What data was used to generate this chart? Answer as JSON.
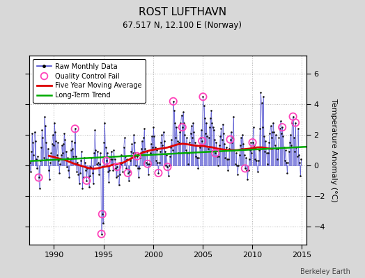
{
  "title": "ROST LUFTHAVN",
  "subtitle": "67.517 N, 12.100 E (Norway)",
  "ylabel": "Temperature Anomaly (°C)",
  "watermark": "Berkeley Earth",
  "xlim": [
    1987.5,
    2015.5
  ],
  "ylim": [
    -5.2,
    7.2
  ],
  "yticks": [
    -4,
    -2,
    0,
    2,
    4,
    6
  ],
  "xticks": [
    1990,
    1995,
    2000,
    2005,
    2010,
    2015
  ],
  "bg_color": "#d8d8d8",
  "plot_bg_color": "#ffffff",
  "line_color": "#4444cc",
  "dot_color": "#111111",
  "qc_color": "#ff44bb",
  "moving_avg_color": "#dd0000",
  "trend_color": "#00aa00",
  "raw_monthly": [
    [
      1987.042,
      1.8
    ],
    [
      1987.125,
      1.4
    ],
    [
      1987.208,
      0.8
    ],
    [
      1987.292,
      -0.3
    ],
    [
      1987.375,
      1.2
    ],
    [
      1987.458,
      0.5
    ],
    [
      1987.542,
      0.2
    ],
    [
      1987.625,
      -0.4
    ],
    [
      1987.708,
      0.9
    ],
    [
      1987.792,
      2.1
    ],
    [
      1987.875,
      1.5
    ],
    [
      1987.958,
      0.7
    ],
    [
      1988.042,
      2.2
    ],
    [
      1988.125,
      1.6
    ],
    [
      1988.208,
      0.4
    ],
    [
      1988.292,
      -0.2
    ],
    [
      1988.375,
      0.6
    ],
    [
      1988.458,
      -0.8
    ],
    [
      1988.542,
      -1.5
    ],
    [
      1988.625,
      0.3
    ],
    [
      1988.708,
      1.2
    ],
    [
      1988.792,
      2.3
    ],
    [
      1988.875,
      1.8
    ],
    [
      1988.958,
      0.5
    ],
    [
      1989.042,
      3.2
    ],
    [
      1989.125,
      2.6
    ],
    [
      1989.208,
      1.5
    ],
    [
      1989.292,
      0.4
    ],
    [
      1989.375,
      1.1
    ],
    [
      1989.458,
      -0.3
    ],
    [
      1989.542,
      -0.9
    ],
    [
      1989.625,
      0.2
    ],
    [
      1989.708,
      0.8
    ],
    [
      1989.792,
      1.4
    ],
    [
      1989.875,
      2.0
    ],
    [
      1989.958,
      1.3
    ],
    [
      1990.042,
      2.8
    ],
    [
      1990.125,
      2.2
    ],
    [
      1990.208,
      1.6
    ],
    [
      1990.292,
      0.7
    ],
    [
      1990.375,
      1.5
    ],
    [
      1990.458,
      0.3
    ],
    [
      1990.542,
      -0.5
    ],
    [
      1990.625,
      0.1
    ],
    [
      1990.708,
      0.7
    ],
    [
      1990.792,
      1.3
    ],
    [
      1990.875,
      0.8
    ],
    [
      1990.958,
      1.4
    ],
    [
      1991.042,
      2.1
    ],
    [
      1991.125,
      1.7
    ],
    [
      1991.208,
      0.9
    ],
    [
      1991.292,
      -0.1
    ],
    [
      1991.375,
      0.5
    ],
    [
      1991.458,
      -0.3
    ],
    [
      1991.542,
      -0.8
    ],
    [
      1991.625,
      0.4
    ],
    [
      1991.708,
      1.0
    ],
    [
      1991.792,
      1.6
    ],
    [
      1991.875,
      1.1
    ],
    [
      1991.958,
      0.6
    ],
    [
      1992.042,
      1.5
    ],
    [
      1992.125,
      2.4
    ],
    [
      1992.208,
      0.6
    ],
    [
      1992.292,
      -0.4
    ],
    [
      1992.375,
      0.2
    ],
    [
      1992.458,
      -0.6
    ],
    [
      1992.542,
      -1.2
    ],
    [
      1992.625,
      -0.5
    ],
    [
      1992.708,
      0.3
    ],
    [
      1992.792,
      0.9
    ],
    [
      1992.875,
      -1.5
    ],
    [
      1992.958,
      -0.8
    ],
    [
      1993.042,
      0.5
    ],
    [
      1993.125,
      0.2
    ],
    [
      1993.208,
      -0.3
    ],
    [
      1993.292,
      -1.0
    ],
    [
      1993.375,
      -0.2
    ],
    [
      1993.458,
      -0.8
    ],
    [
      1993.542,
      -1.4
    ],
    [
      1993.625,
      -0.7
    ],
    [
      1993.708,
      -0.1
    ],
    [
      1993.792,
      0.5
    ],
    [
      1993.875,
      -0.5
    ],
    [
      1993.958,
      -1.2
    ],
    [
      1994.042,
      0.8
    ],
    [
      1994.125,
      2.3
    ],
    [
      1994.208,
      1.0
    ],
    [
      1994.292,
      0.1
    ],
    [
      1994.375,
      0.9
    ],
    [
      1994.458,
      0.2
    ],
    [
      1994.542,
      -0.6
    ],
    [
      1994.625,
      0.1
    ],
    [
      1994.708,
      0.8
    ],
    [
      1994.792,
      -4.5
    ],
    [
      1994.875,
      -3.2
    ],
    [
      1994.958,
      -3.8
    ],
    [
      1995.042,
      1.5
    ],
    [
      1995.125,
      2.8
    ],
    [
      1995.208,
      1.2
    ],
    [
      1995.292,
      0.3
    ],
    [
      1995.375,
      0.8
    ],
    [
      1995.458,
      -0.4
    ],
    [
      1995.542,
      -1.1
    ],
    [
      1995.625,
      -0.3
    ],
    [
      1995.708,
      0.4
    ],
    [
      1995.792,
      0.9
    ],
    [
      1995.875,
      0.4
    ],
    [
      1995.958,
      -0.3
    ],
    [
      1996.042,
      1.0
    ],
    [
      1996.125,
      0.4
    ],
    [
      1996.208,
      -0.2
    ],
    [
      1996.292,
      -0.8
    ],
    [
      1996.375,
      -0.1
    ],
    [
      1996.458,
      -0.7
    ],
    [
      1996.542,
      -1.3
    ],
    [
      1996.625,
      -0.6
    ],
    [
      1996.708,
      0.1
    ],
    [
      1996.792,
      0.7
    ],
    [
      1996.875,
      0.2
    ],
    [
      1996.958,
      -0.4
    ],
    [
      1997.042,
      1.2
    ],
    [
      1997.125,
      1.8
    ],
    [
      1997.208,
      0.6
    ],
    [
      1997.292,
      -0.2
    ],
    [
      1997.375,
      0.4
    ],
    [
      1997.458,
      -0.5
    ],
    [
      1997.542,
      -1.0
    ],
    [
      1997.625,
      -0.4
    ],
    [
      1997.708,
      0.3
    ],
    [
      1997.792,
      0.9
    ],
    [
      1997.875,
      1.4
    ],
    [
      1997.958,
      0.8
    ],
    [
      1998.042,
      2.0
    ],
    [
      1998.125,
      1.5
    ],
    [
      1998.208,
      0.8
    ],
    [
      1998.292,
      0.0
    ],
    [
      1998.375,
      0.6
    ],
    [
      1998.458,
      -0.2
    ],
    [
      1998.542,
      -0.8
    ],
    [
      1998.625,
      -0.2
    ],
    [
      1998.708,
      0.5
    ],
    [
      1998.792,
      1.1
    ],
    [
      1998.875,
      1.6
    ],
    [
      1998.958,
      0.9
    ],
    [
      1999.042,
      1.8
    ],
    [
      1999.125,
      2.4
    ],
    [
      1999.208,
      1.1
    ],
    [
      1999.292,
      0.2
    ],
    [
      1999.375,
      0.9
    ],
    [
      1999.458,
      0.1
    ],
    [
      1999.542,
      -0.6
    ],
    [
      1999.625,
      0.1
    ],
    [
      1999.708,
      0.8
    ],
    [
      1999.792,
      1.4
    ],
    [
      1999.875,
      1.9
    ],
    [
      1999.958,
      1.2
    ],
    [
      2000.042,
      2.5
    ],
    [
      2000.125,
      1.9
    ],
    [
      2000.208,
      1.2
    ],
    [
      2000.292,
      0.3
    ],
    [
      2000.375,
      1.0
    ],
    [
      2000.458,
      0.2
    ],
    [
      2000.542,
      -0.5
    ],
    [
      2000.625,
      0.2
    ],
    [
      2000.708,
      0.9
    ],
    [
      2000.792,
      1.5
    ],
    [
      2000.875,
      2.0
    ],
    [
      2000.958,
      1.3
    ],
    [
      2001.042,
      2.2
    ],
    [
      2001.125,
      1.6
    ],
    [
      2001.208,
      0.9
    ],
    [
      2001.292,
      0.0
    ],
    [
      2001.375,
      0.7
    ],
    [
      2001.458,
      -0.1
    ],
    [
      2001.542,
      -0.7
    ],
    [
      2001.625,
      0.0
    ],
    [
      2001.708,
      0.6
    ],
    [
      2001.792,
      1.2
    ],
    [
      2001.875,
      1.7
    ],
    [
      2001.958,
      1.0
    ],
    [
      2002.042,
      4.2
    ],
    [
      2002.125,
      3.6
    ],
    [
      2002.208,
      2.8
    ],
    [
      2002.292,
      1.8
    ],
    [
      2002.375,
      2.5
    ],
    [
      2002.458,
      1.6
    ],
    [
      2002.542,
      0.8
    ],
    [
      2002.625,
      1.5
    ],
    [
      2002.708,
      2.2
    ],
    [
      2002.792,
      2.8
    ],
    [
      2002.875,
      3.3
    ],
    [
      2002.958,
      2.5
    ],
    [
      2003.042,
      3.5
    ],
    [
      2003.125,
      2.8
    ],
    [
      2003.208,
      2.0
    ],
    [
      2003.292,
      1.0
    ],
    [
      2003.375,
      1.8
    ],
    [
      2003.458,
      0.8
    ],
    [
      2003.542,
      0.1
    ],
    [
      2003.625,
      0.8
    ],
    [
      2003.708,
      1.5
    ],
    [
      2003.792,
      2.1
    ],
    [
      2003.875,
      2.6
    ],
    [
      2003.958,
      1.8
    ],
    [
      2004.042,
      2.8
    ],
    [
      2004.125,
      2.2
    ],
    [
      2004.208,
      1.5
    ],
    [
      2004.292,
      0.6
    ],
    [
      2004.375,
      1.3
    ],
    [
      2004.458,
      0.5
    ],
    [
      2004.542,
      -0.2
    ],
    [
      2004.625,
      0.5
    ],
    [
      2004.708,
      1.2
    ],
    [
      2004.792,
      1.8
    ],
    [
      2004.875,
      2.3
    ],
    [
      2004.958,
      1.6
    ],
    [
      2005.042,
      4.5
    ],
    [
      2005.125,
      3.9
    ],
    [
      2005.208,
      3.1
    ],
    [
      2005.292,
      2.1
    ],
    [
      2005.375,
      2.8
    ],
    [
      2005.458,
      1.9
    ],
    [
      2005.542,
      1.1
    ],
    [
      2005.625,
      1.8
    ],
    [
      2005.708,
      2.5
    ],
    [
      2005.792,
      3.1
    ],
    [
      2005.875,
      3.6
    ],
    [
      2005.958,
      2.8
    ],
    [
      2006.042,
      2.5
    ],
    [
      2006.125,
      2.3
    ],
    [
      2006.208,
      1.7
    ],
    [
      2006.292,
      0.8
    ],
    [
      2006.375,
      1.5
    ],
    [
      2006.458,
      0.6
    ],
    [
      2006.542,
      0.0
    ],
    [
      2006.625,
      0.6
    ],
    [
      2006.708,
      1.3
    ],
    [
      2006.792,
      1.9
    ],
    [
      2006.875,
      2.4
    ],
    [
      2006.958,
      1.7
    ],
    [
      2007.042,
      2.7
    ],
    [
      2007.125,
      2.1
    ],
    [
      2007.208,
      1.4
    ],
    [
      2007.292,
      0.5
    ],
    [
      2007.375,
      1.2
    ],
    [
      2007.458,
      0.4
    ],
    [
      2007.542,
      -0.3
    ],
    [
      2007.625,
      0.4
    ],
    [
      2007.708,
      1.1
    ],
    [
      2007.792,
      1.7
    ],
    [
      2007.875,
      2.2
    ],
    [
      2007.958,
      1.5
    ],
    [
      2008.042,
      1.8
    ],
    [
      2008.125,
      3.2
    ],
    [
      2008.208,
      1.0
    ],
    [
      2008.292,
      0.1
    ],
    [
      2008.375,
      0.8
    ],
    [
      2008.458,
      0.0
    ],
    [
      2008.542,
      -0.6
    ],
    [
      2008.625,
      0.0
    ],
    [
      2008.708,
      0.7
    ],
    [
      2008.792,
      1.3
    ],
    [
      2008.875,
      1.8
    ],
    [
      2008.958,
      1.1
    ],
    [
      2009.042,
      2.0
    ],
    [
      2009.125,
      1.4
    ],
    [
      2009.208,
      0.7
    ],
    [
      2009.292,
      -0.2
    ],
    [
      2009.375,
      0.5
    ],
    [
      2009.458,
      -0.3
    ],
    [
      2009.542,
      -0.9
    ],
    [
      2009.625,
      -0.3
    ],
    [
      2009.708,
      0.4
    ],
    [
      2009.792,
      1.0
    ],
    [
      2009.875,
      1.5
    ],
    [
      2009.958,
      0.8
    ],
    [
      2010.042,
      1.5
    ],
    [
      2010.125,
      2.5
    ],
    [
      2010.208,
      1.3
    ],
    [
      2010.292,
      0.4
    ],
    [
      2010.375,
      1.1
    ],
    [
      2010.458,
      0.3
    ],
    [
      2010.542,
      -0.4
    ],
    [
      2010.625,
      0.3
    ],
    [
      2010.708,
      1.0
    ],
    [
      2010.792,
      2.4
    ],
    [
      2010.875,
      4.8
    ],
    [
      2010.958,
      4.1
    ],
    [
      2011.042,
      2.5
    ],
    [
      2011.125,
      4.5
    ],
    [
      2011.208,
      1.9
    ],
    [
      2011.292,
      0.9
    ],
    [
      2011.375,
      1.6
    ],
    [
      2011.458,
      0.8
    ],
    [
      2011.542,
      0.1
    ],
    [
      2011.625,
      0.8
    ],
    [
      2011.708,
      1.5
    ],
    [
      2011.792,
      2.1
    ],
    [
      2011.875,
      2.6
    ],
    [
      2011.958,
      1.8
    ],
    [
      2012.042,
      2.2
    ],
    [
      2012.125,
      2.8
    ],
    [
      2012.208,
      2.2
    ],
    [
      2012.292,
      1.3
    ],
    [
      2012.375,
      2.0
    ],
    [
      2012.458,
      1.1
    ],
    [
      2012.542,
      0.4
    ],
    [
      2012.625,
      1.1
    ],
    [
      2012.708,
      1.8
    ],
    [
      2012.792,
      2.4
    ],
    [
      2012.875,
      2.9
    ],
    [
      2012.958,
      2.1
    ],
    [
      2013.042,
      2.5
    ],
    [
      2013.125,
      1.9
    ],
    [
      2013.208,
      1.2
    ],
    [
      2013.292,
      0.3
    ],
    [
      2013.375,
      1.0
    ],
    [
      2013.458,
      0.2
    ],
    [
      2013.542,
      -0.5
    ],
    [
      2013.625,
      0.2
    ],
    [
      2013.708,
      0.9
    ],
    [
      2013.792,
      1.5
    ],
    [
      2013.875,
      2.0
    ],
    [
      2013.958,
      1.3
    ],
    [
      2014.042,
      2.8
    ],
    [
      2014.125,
      3.2
    ],
    [
      2014.208,
      1.8
    ],
    [
      2014.292,
      0.9
    ],
    [
      2014.375,
      2.8
    ],
    [
      2014.458,
      1.2
    ],
    [
      2014.542,
      0.6
    ],
    [
      2014.625,
      2.4
    ],
    [
      2014.708,
      0.7
    ],
    [
      2014.792,
      0.2
    ],
    [
      2014.875,
      -0.7
    ],
    [
      2014.958,
      0.4
    ]
  ],
  "qc_fail_points": [
    [
      1988.458,
      -0.8
    ],
    [
      1992.125,
      2.4
    ],
    [
      1993.292,
      -1.0
    ],
    [
      1994.792,
      -4.5
    ],
    [
      1994.875,
      -3.2
    ],
    [
      1995.292,
      0.3
    ],
    [
      1996.375,
      -0.1
    ],
    [
      1997.458,
      -0.5
    ],
    [
      1998.375,
      0.6
    ],
    [
      1999.458,
      0.1
    ],
    [
      2000.542,
      -0.5
    ],
    [
      2001.458,
      -0.1
    ],
    [
      2002.042,
      4.2
    ],
    [
      2002.958,
      2.5
    ],
    [
      2004.958,
      1.6
    ],
    [
      2005.042,
      4.5
    ],
    [
      2006.292,
      0.8
    ],
    [
      2007.792,
      1.7
    ],
    [
      2009.292,
      -0.2
    ],
    [
      2010.042,
      1.5
    ],
    [
      2013.042,
      2.5
    ],
    [
      2014.125,
      3.2
    ],
    [
      2014.375,
      2.8
    ]
  ],
  "moving_avg": [
    [
      1989.5,
      0.62
    ],
    [
      1990.0,
      0.55
    ],
    [
      1990.5,
      0.45
    ],
    [
      1991.0,
      0.38
    ],
    [
      1991.5,
      0.25
    ],
    [
      1992.0,
      0.12
    ],
    [
      1992.5,
      0.02
    ],
    [
      1993.0,
      -0.08
    ],
    [
      1993.5,
      -0.18
    ],
    [
      1994.0,
      -0.22
    ],
    [
      1994.5,
      -0.18
    ],
    [
      1995.0,
      -0.1
    ],
    [
      1995.5,
      -0.05
    ],
    [
      1996.0,
      0.05
    ],
    [
      1996.5,
      0.12
    ],
    [
      1997.0,
      0.18
    ],
    [
      1997.5,
      0.35
    ],
    [
      1998.0,
      0.52
    ],
    [
      1998.5,
      0.7
    ],
    [
      1999.0,
      0.85
    ],
    [
      1999.5,
      0.95
    ],
    [
      2000.0,
      1.02
    ],
    [
      2000.5,
      1.08
    ],
    [
      2001.0,
      1.12
    ],
    [
      2001.5,
      1.18
    ],
    [
      2002.0,
      1.28
    ],
    [
      2002.5,
      1.38
    ],
    [
      2003.0,
      1.42
    ],
    [
      2003.5,
      1.38
    ],
    [
      2004.0,
      1.32
    ],
    [
      2004.5,
      1.28
    ],
    [
      2005.0,
      1.28
    ],
    [
      2005.5,
      1.22
    ],
    [
      2006.0,
      1.18
    ],
    [
      2006.5,
      1.1
    ],
    [
      2007.0,
      1.05
    ],
    [
      2007.5,
      1.0
    ],
    [
      2008.0,
      1.0
    ],
    [
      2008.5,
      1.0
    ],
    [
      2009.0,
      1.05
    ],
    [
      2009.5,
      1.08
    ],
    [
      2010.0,
      1.12
    ],
    [
      2010.5,
      1.18
    ],
    [
      2011.0,
      1.18
    ],
    [
      2011.5,
      1.12
    ],
    [
      2012.0,
      1.08
    ]
  ],
  "trend_line": [
    [
      1987.5,
      0.28
    ],
    [
      2015.5,
      1.22
    ]
  ]
}
